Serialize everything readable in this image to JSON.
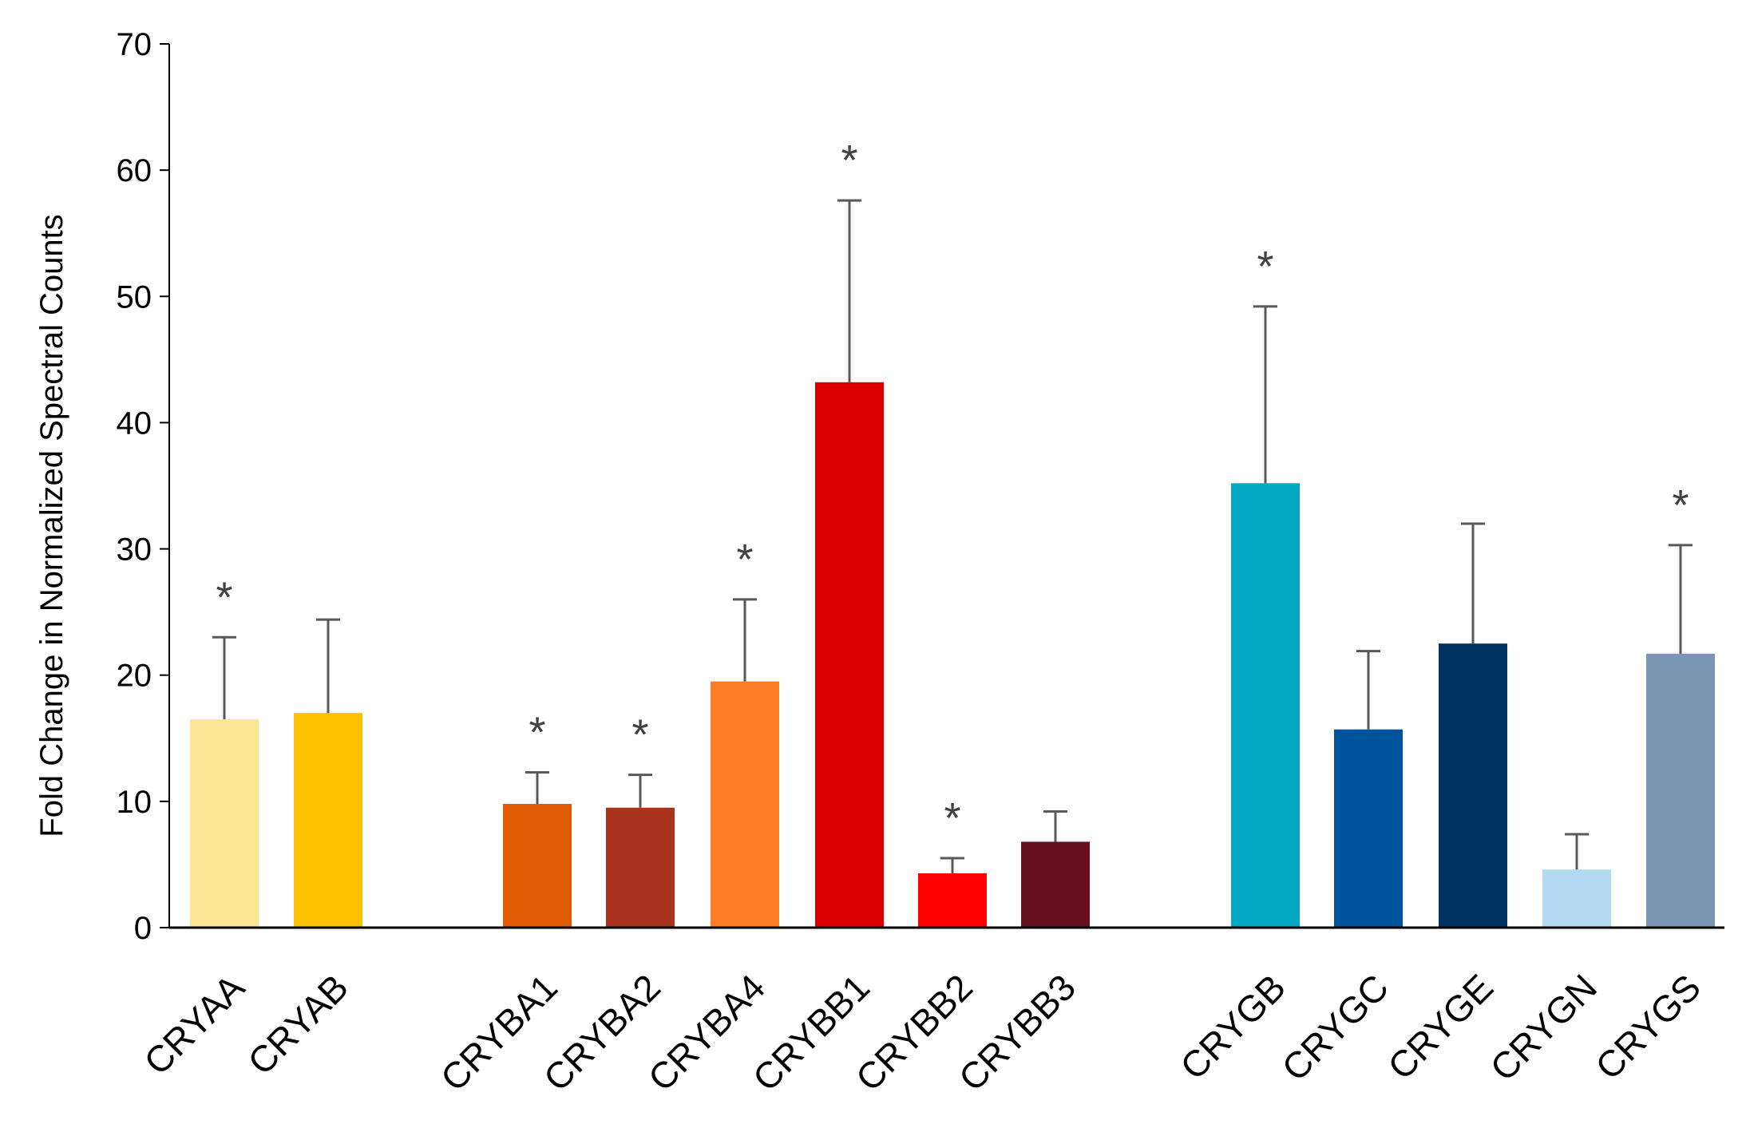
{
  "chart_data": {
    "type": "bar",
    "title": "",
    "xlabel": "",
    "ylabel": "Fold Change in Normalized Spectral Counts",
    "ylim": [
      0,
      70
    ],
    "yticks": [
      0,
      10,
      20,
      30,
      40,
      50,
      60,
      70
    ],
    "grid": false,
    "legend": "none",
    "significance_marker": "*",
    "groups": [
      [
        "CRYAA",
        "CRYAB"
      ],
      [
        "CRYBA1",
        "CRYBA2",
        "CRYBA4",
        "CRYBB1",
        "CRYBB2",
        "CRYBB3"
      ],
      [
        "CRYGB",
        "CRYGC",
        "CRYGE",
        "CRYGN",
        "CRYGS"
      ]
    ],
    "bars": [
      {
        "category": "CRYAA",
        "value": 16.5,
        "error": 6.5,
        "significant": true,
        "color": "#FEE595"
      },
      {
        "category": "CRYAB",
        "value": 17.0,
        "error": 7.4,
        "significant": false,
        "color": "#FEC000"
      },
      {
        "category": "CRYBA1",
        "value": 9.8,
        "error": 2.5,
        "significant": true,
        "color": "#E15B05"
      },
      {
        "category": "CRYBA2",
        "value": 9.5,
        "error": 2.6,
        "significant": true,
        "color": "#A9331F"
      },
      {
        "category": "CRYBA4",
        "value": 19.5,
        "error": 6.5,
        "significant": true,
        "color": "#FE7E27"
      },
      {
        "category": "CRYBB1",
        "value": 43.2,
        "error": 14.4,
        "significant": true,
        "color": "#DD0000"
      },
      {
        "category": "CRYBB2",
        "value": 4.3,
        "error": 1.2,
        "significant": true,
        "color": "#FF0000"
      },
      {
        "category": "CRYBB3",
        "value": 6.8,
        "error": 2.4,
        "significant": false,
        "color": "#660F1E"
      },
      {
        "category": "CRYGB",
        "value": 35.2,
        "error": 14.0,
        "significant": true,
        "color": "#00A9C1"
      },
      {
        "category": "CRYGC",
        "value": 15.7,
        "error": 6.2,
        "significant": false,
        "color": "#00549C"
      },
      {
        "category": "CRYGE",
        "value": 22.5,
        "error": 9.5,
        "significant": false,
        "color": "#00325F"
      },
      {
        "category": "CRYGN",
        "value": 4.6,
        "error": 2.8,
        "significant": false,
        "color": "#B4D9F2"
      },
      {
        "category": "CRYGS",
        "value": 21.7,
        "error": 8.6,
        "significant": true,
        "color": "#7A96B2"
      }
    ]
  }
}
